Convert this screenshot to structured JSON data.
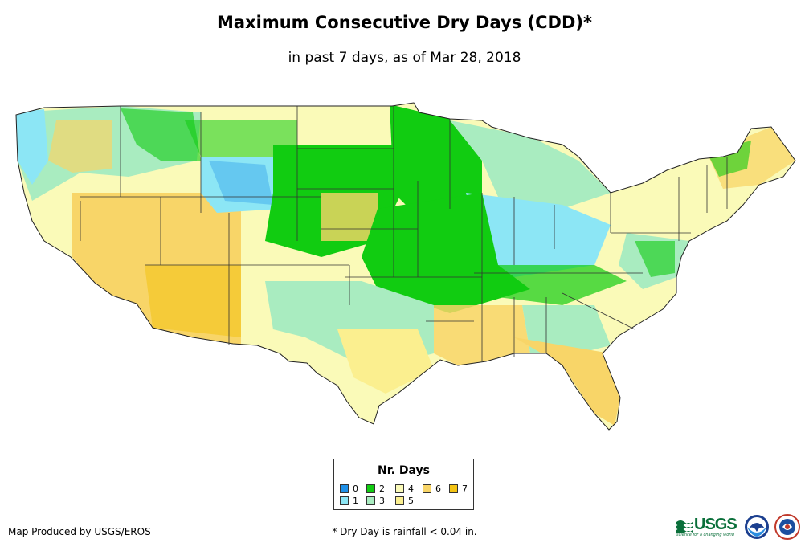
{
  "title": "Maximum Consecutive Dry Days (CDD)*",
  "subtitle": "in past 7 days, as of Mar 28, 2018",
  "legend": {
    "title": "Nr. Days",
    "items": [
      {
        "label": "0",
        "color": "#1e90e8"
      },
      {
        "label": "1",
        "color": "#8ce6f5"
      },
      {
        "label": "2",
        "color": "#11cc11"
      },
      {
        "label": "3",
        "color": "#a9ecc0"
      },
      {
        "label": "4",
        "color": "#fafab8"
      },
      {
        "label": "5",
        "color": "#fbef8f"
      },
      {
        "label": "6",
        "color": "#f8d568"
      },
      {
        "label": "7",
        "color": "#f3c313"
      }
    ]
  },
  "credit": "Map Produced by USGS/EROS",
  "footnote": "* Dry Day is rainfall < 0.04 in.",
  "logos": {
    "usgs_text": "USGS",
    "usgs_tagline": "science for a changing world",
    "icons": [
      "usgs-logo-icon",
      "noaa-logo-icon",
      "nws-logo-icon"
    ]
  }
}
